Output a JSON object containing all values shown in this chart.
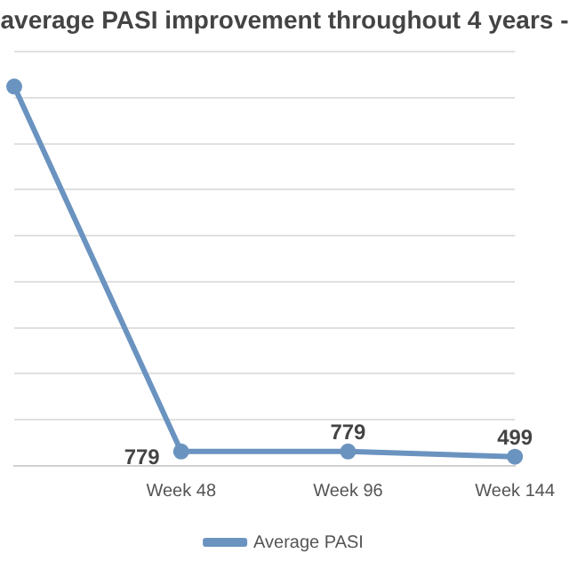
{
  "chart_data": {
    "type": "line",
    "title": "average PASI improvement throughout 4 years -",
    "categories": [
      null,
      "Week 48",
      "Week 96",
      "Week 144"
    ],
    "series": [
      {
        "name": "Average PASI",
        "color": "#6a93c0",
        "values": [
          20600,
          779,
          779,
          499
        ],
        "value_labels": [
          null,
          "779",
          "779",
          "499"
        ]
      }
    ],
    "ylim": [
      0,
      22500
    ],
    "yticks": [
      {
        "value": 0,
        "label": null
      },
      {
        "value": 2500,
        "label": null
      },
      {
        "value": 5000,
        "label": null
      },
      {
        "value": 7500,
        "label": null
      },
      {
        "value": 10000,
        "label": null
      },
      {
        "value": 12500,
        "label": null
      },
      {
        "value": 15000,
        "label": null
      },
      {
        "value": 17500,
        "label": null
      },
      {
        "value": 20000,
        "label": null
      },
      {
        "value": 22500,
        "label": null
      }
    ],
    "tick_labels": "x",
    "grid": "y",
    "legend": "bottom",
    "marker": "circle",
    "line_style": "solid"
  }
}
